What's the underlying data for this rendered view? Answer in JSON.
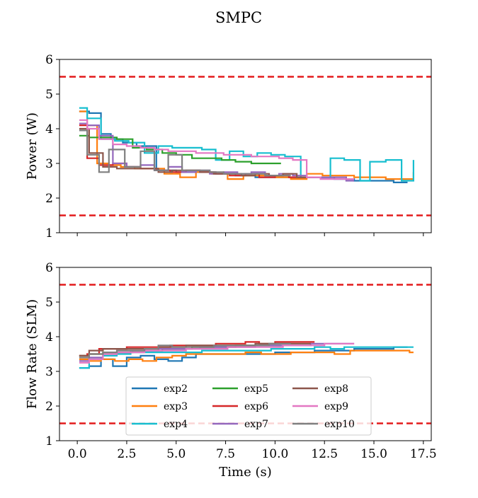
{
  "figure": {
    "title": "SMPC"
  },
  "chart_data": [
    {
      "type": "line",
      "step": true,
      "ylabel": "Power (W)",
      "xlabel": "",
      "xlim": [
        -0.9,
        17.9
      ],
      "ylim": [
        1,
        6
      ],
      "yticks": [
        "1",
        "2",
        "3",
        "4",
        "5",
        "6"
      ],
      "xticks": [],
      "grid": false,
      "reference_lines": [
        {
          "y": 5.5,
          "style": "dashed",
          "color": "#e31a1c"
        },
        {
          "y": 1.5,
          "style": "dashed",
          "color": "#e31a1c"
        }
      ],
      "series": [
        {
          "name": "exp2",
          "color": "#1f77b4",
          "x": [
            0.1,
            0.6,
            1.2,
            1.7,
            2.3,
            3.0,
            4.0,
            5.0,
            6.0,
            7.0,
            8.0,
            9.0,
            10.0,
            11.0,
            12.0,
            13.0,
            14.0,
            15.0,
            16.0,
            16.7
          ],
          "y": [
            4.5,
            4.45,
            3.85,
            3.7,
            3.6,
            3.5,
            2.8,
            2.75,
            2.75,
            2.7,
            2.65,
            2.6,
            2.6,
            2.6,
            2.6,
            2.55,
            2.5,
            2.5,
            2.45,
            2.45
          ]
        },
        {
          "name": "exp3",
          "color": "#ff7f0e",
          "x": [
            0.1,
            0.5,
            1.0,
            1.6,
            2.2,
            2.9,
            3.6,
            4.4,
            5.2,
            6.0,
            6.8,
            7.6,
            8.4,
            9.2,
            10.0,
            10.8,
            11.6,
            12.4,
            13.2,
            14.0,
            14.8,
            15.6,
            16.4,
            17.0
          ],
          "y": [
            4.5,
            4.1,
            3.0,
            2.95,
            2.9,
            2.85,
            2.85,
            2.7,
            2.6,
            2.75,
            2.7,
            2.55,
            2.65,
            2.65,
            2.6,
            2.55,
            2.7,
            2.65,
            2.65,
            2.6,
            2.6,
            2.55,
            2.55,
            2.75
          ]
        },
        {
          "name": "exp4",
          "color": "#17becf",
          "x": [
            0.1,
            0.5,
            1.2,
            1.9,
            2.6,
            3.4,
            4.1,
            4.8,
            5.5,
            6.3,
            7.0,
            7.7,
            8.4,
            9.1,
            9.8,
            10.5,
            11.3,
            12.0,
            12.8,
            13.5,
            14.3,
            14.8,
            15.6,
            16.4,
            17.0
          ],
          "y": [
            4.6,
            4.3,
            3.7,
            3.65,
            3.6,
            3.3,
            3.5,
            3.45,
            3.45,
            3.4,
            3.1,
            3.35,
            3.2,
            3.3,
            3.25,
            3.2,
            2.6,
            2.6,
            3.15,
            3.1,
            2.5,
            3.05,
            3.1,
            2.5,
            3.1
          ]
        },
        {
          "name": "exp5",
          "color": "#2ca02c",
          "x": [
            0.1,
            0.6,
            1.3,
            2.0,
            2.8,
            3.5,
            4.3,
            5.0,
            5.8,
            6.5,
            7.3,
            8.0,
            8.8,
            9.5,
            10.3
          ],
          "y": [
            3.8,
            3.75,
            3.75,
            3.7,
            3.45,
            3.4,
            3.3,
            3.25,
            3.15,
            3.15,
            3.1,
            3.05,
            3.0,
            3.0,
            3.0
          ]
        },
        {
          "name": "exp6",
          "color": "#d62728",
          "x": [
            0.1,
            0.5,
            1.1,
            1.8,
            2.5,
            3.2,
            4.0,
            4.7,
            5.5,
            6.2,
            7.0,
            7.7,
            8.5,
            9.2,
            10.0,
            10.7,
            11.5,
            12.0
          ],
          "y": [
            4.1,
            3.15,
            2.95,
            3.0,
            2.9,
            2.85,
            2.8,
            2.75,
            2.8,
            2.75,
            2.7,
            2.65,
            2.7,
            2.6,
            2.65,
            2.6,
            2.6,
            2.6
          ]
        },
        {
          "name": "exp7",
          "color": "#9467bd",
          "x": [
            0.1,
            0.5,
            1.1,
            1.8,
            2.5,
            3.2,
            3.9,
            4.6,
            5.3,
            6.0,
            6.7,
            7.4,
            8.1,
            8.8,
            9.5,
            10.2,
            10.9,
            11.6,
            12.3,
            13.0,
            13.6,
            14.0
          ],
          "y": [
            4.15,
            4.1,
            3.8,
            3.0,
            2.9,
            2.95,
            2.8,
            2.9,
            2.75,
            2.8,
            2.7,
            2.75,
            2.7,
            2.75,
            2.65,
            2.7,
            2.65,
            2.6,
            2.6,
            2.6,
            2.5,
            2.5
          ]
        },
        {
          "name": "exp8",
          "color": "#8c564b",
          "x": [
            0.1,
            0.6,
            1.3,
            2.0,
            2.7,
            3.4,
            4.1,
            4.8,
            5.5,
            6.2,
            6.9,
            7.6,
            8.3,
            9.0,
            9.7,
            10.4,
            11.1,
            11.8
          ],
          "y": [
            4.0,
            3.3,
            2.9,
            2.85,
            2.85,
            2.85,
            2.75,
            2.8,
            2.8,
            2.75,
            2.7,
            2.7,
            2.65,
            2.7,
            2.65,
            2.7,
            2.6,
            2.6
          ]
        },
        {
          "name": "exp9",
          "color": "#e377c2",
          "x": [
            0.1,
            0.5,
            1.1,
            1.8,
            2.5,
            3.2,
            3.9,
            4.6,
            5.3,
            6.0,
            6.7,
            7.4,
            8.1,
            8.8,
            9.5,
            10.2,
            10.9,
            11.6,
            12.3,
            13.0,
            13.6,
            14.0
          ],
          "y": [
            4.25,
            4.0,
            3.7,
            3.55,
            3.5,
            3.45,
            3.4,
            3.35,
            3.35,
            3.3,
            3.3,
            3.25,
            3.25,
            3.2,
            3.2,
            3.15,
            3.1,
            2.6,
            2.55,
            2.55,
            2.55,
            2.55
          ]
        },
        {
          "name": "exp10",
          "color": "#7f7f7f",
          "x": [
            0.1,
            0.5,
            1.1,
            1.6,
            2.4,
            3.2,
            3.9,
            4.6,
            5.3,
            6.0,
            6.7,
            7.4,
            8.1,
            8.8,
            9.5,
            10.2,
            10.8
          ],
          "y": [
            3.95,
            3.25,
            2.75,
            3.4,
            2.9,
            3.35,
            2.8,
            3.25,
            2.8,
            2.8,
            2.75,
            2.7,
            2.7,
            2.7,
            2.65,
            2.65,
            2.65
          ]
        }
      ]
    },
    {
      "type": "line",
      "step": true,
      "ylabel": "Flow Rate (SLM)",
      "xlabel": "Time (s)",
      "xlim": [
        -0.9,
        17.9
      ],
      "ylim": [
        1,
        6
      ],
      "yticks": [
        "1",
        "2",
        "3",
        "4",
        "5",
        "6"
      ],
      "xticks": [
        "0.0",
        "2.5",
        "5.0",
        "7.5",
        "10.0",
        "12.5",
        "15.0",
        "17.5"
      ],
      "grid": false,
      "reference_lines": [
        {
          "y": 5.5,
          "style": "dashed",
          "color": "#e31a1c"
        },
        {
          "y": 1.5,
          "style": "dashed",
          "color": "#e31a1c"
        }
      ],
      "legend": {
        "position": "lower-center",
        "columns": 3
      },
      "series": [
        {
          "name": "exp2",
          "color": "#1f77b4",
          "x": [
            0.1,
            0.6,
            1.2,
            1.8,
            2.5,
            3.2,
            3.9,
            4.6,
            5.3,
            6.0,
            7.0,
            8.0,
            9.0,
            10.0,
            11.0,
            12.0,
            13.0,
            14.0,
            15.0,
            16.0,
            16.7
          ],
          "y": [
            3.1,
            3.15,
            3.35,
            3.15,
            3.4,
            3.45,
            3.35,
            3.3,
            3.4,
            3.5,
            3.5,
            3.5,
            3.5,
            3.55,
            3.55,
            3.6,
            3.6,
            3.65,
            3.65,
            3.7,
            3.7
          ]
        },
        {
          "name": "exp3",
          "color": "#ff7f0e",
          "x": [
            0.1,
            0.6,
            1.2,
            1.9,
            2.6,
            3.3,
            4.0,
            4.8,
            5.5,
            6.3,
            7.0,
            7.8,
            8.5,
            9.3,
            10.0,
            10.8,
            11.5,
            12.3,
            13.0,
            13.8,
            14.5,
            15.3,
            16.0,
            16.8,
            17.0
          ],
          "y": [
            3.35,
            3.3,
            3.35,
            3.3,
            3.35,
            3.3,
            3.4,
            3.45,
            3.5,
            3.5,
            3.5,
            3.5,
            3.55,
            3.5,
            3.5,
            3.55,
            3.55,
            3.55,
            3.5,
            3.6,
            3.6,
            3.6,
            3.6,
            3.55,
            3.55
          ]
        },
        {
          "name": "exp4",
          "color": "#17becf",
          "x": [
            0.1,
            0.6,
            1.3,
            2.0,
            2.7,
            3.4,
            4.1,
            4.8,
            5.5,
            6.3,
            7.0,
            7.7,
            8.4,
            9.1,
            9.8,
            10.5,
            11.3,
            12.0,
            12.8,
            13.5,
            14.3,
            15.0,
            15.8,
            16.5,
            17.0
          ],
          "y": [
            3.1,
            3.35,
            3.45,
            3.5,
            3.55,
            3.55,
            3.55,
            3.55,
            3.55,
            3.6,
            3.6,
            3.6,
            3.6,
            3.6,
            3.65,
            3.65,
            3.65,
            3.7,
            3.65,
            3.7,
            3.7,
            3.7,
            3.7,
            3.7,
            3.7
          ]
        },
        {
          "name": "exp5",
          "color": "#2ca02c",
          "x": [
            0.1,
            0.6,
            1.3,
            2.0,
            2.8,
            3.5,
            4.3,
            5.0,
            5.8,
            6.5,
            7.3,
            8.0,
            8.8,
            9.5,
            10.3
          ],
          "y": [
            3.45,
            3.5,
            3.55,
            3.55,
            3.6,
            3.6,
            3.65,
            3.65,
            3.7,
            3.7,
            3.7,
            3.75,
            3.75,
            3.75,
            3.75
          ]
        },
        {
          "name": "exp6",
          "color": "#d62728",
          "x": [
            0.1,
            0.5,
            1.1,
            1.8,
            2.5,
            3.2,
            4.0,
            4.7,
            5.5,
            6.2,
            7.0,
            7.7,
            8.5,
            9.2,
            10.0,
            10.7,
            11.5,
            12.0
          ],
          "y": [
            3.45,
            3.5,
            3.65,
            3.65,
            3.7,
            3.7,
            3.7,
            3.75,
            3.75,
            3.75,
            3.8,
            3.8,
            3.85,
            3.8,
            3.85,
            3.85,
            3.85,
            3.85
          ]
        },
        {
          "name": "exp7",
          "color": "#9467bd",
          "x": [
            0.1,
            0.6,
            1.3,
            2.0,
            2.7,
            3.4,
            4.1,
            4.8,
            5.5,
            6.2,
            6.9,
            7.6,
            8.3,
            9.0,
            9.7,
            10.4,
            11.1,
            11.8,
            12.5,
            13.2,
            14.0
          ],
          "y": [
            3.3,
            3.4,
            3.5,
            3.55,
            3.6,
            3.6,
            3.65,
            3.65,
            3.65,
            3.7,
            3.7,
            3.7,
            3.7,
            3.75,
            3.75,
            3.75,
            3.75,
            3.8,
            3.8,
            3.8,
            3.8
          ]
        },
        {
          "name": "exp8",
          "color": "#8c564b",
          "x": [
            0.1,
            0.6,
            1.3,
            2.0,
            2.7,
            3.4,
            4.1,
            4.8,
            5.5,
            6.2,
            6.9,
            7.6,
            8.3,
            9.0,
            9.7,
            10.4,
            11.1,
            11.8
          ],
          "y": [
            3.45,
            3.6,
            3.65,
            3.65,
            3.65,
            3.65,
            3.7,
            3.7,
            3.75,
            3.75,
            3.75,
            3.75,
            3.75,
            3.8,
            3.8,
            3.8,
            3.8,
            3.8
          ]
        },
        {
          "name": "exp9",
          "color": "#e377c2",
          "x": [
            0.1,
            0.6,
            1.3,
            2.0,
            2.7,
            3.4,
            4.1,
            4.8,
            5.5,
            6.2,
            6.9,
            7.6,
            8.3,
            9.0,
            9.7,
            10.4,
            11.1,
            11.8,
            12.5,
            13.2,
            14.0
          ],
          "y": [
            3.25,
            3.35,
            3.5,
            3.55,
            3.55,
            3.6,
            3.6,
            3.6,
            3.65,
            3.65,
            3.65,
            3.7,
            3.7,
            3.7,
            3.7,
            3.75,
            3.75,
            3.75,
            3.8,
            3.8,
            3.8
          ]
        },
        {
          "name": "exp10",
          "color": "#7f7f7f",
          "x": [
            0.1,
            0.6,
            1.3,
            2.0,
            2.7,
            3.4,
            4.1,
            4.8,
            5.5,
            6.2,
            6.9,
            7.6,
            8.3,
            9.0,
            9.7,
            10.4,
            10.8
          ],
          "y": [
            3.4,
            3.5,
            3.55,
            3.6,
            3.6,
            3.65,
            3.75,
            3.7,
            3.7,
            3.7,
            3.75,
            3.75,
            3.75,
            3.75,
            3.8,
            3.8,
            3.8
          ]
        }
      ]
    }
  ]
}
